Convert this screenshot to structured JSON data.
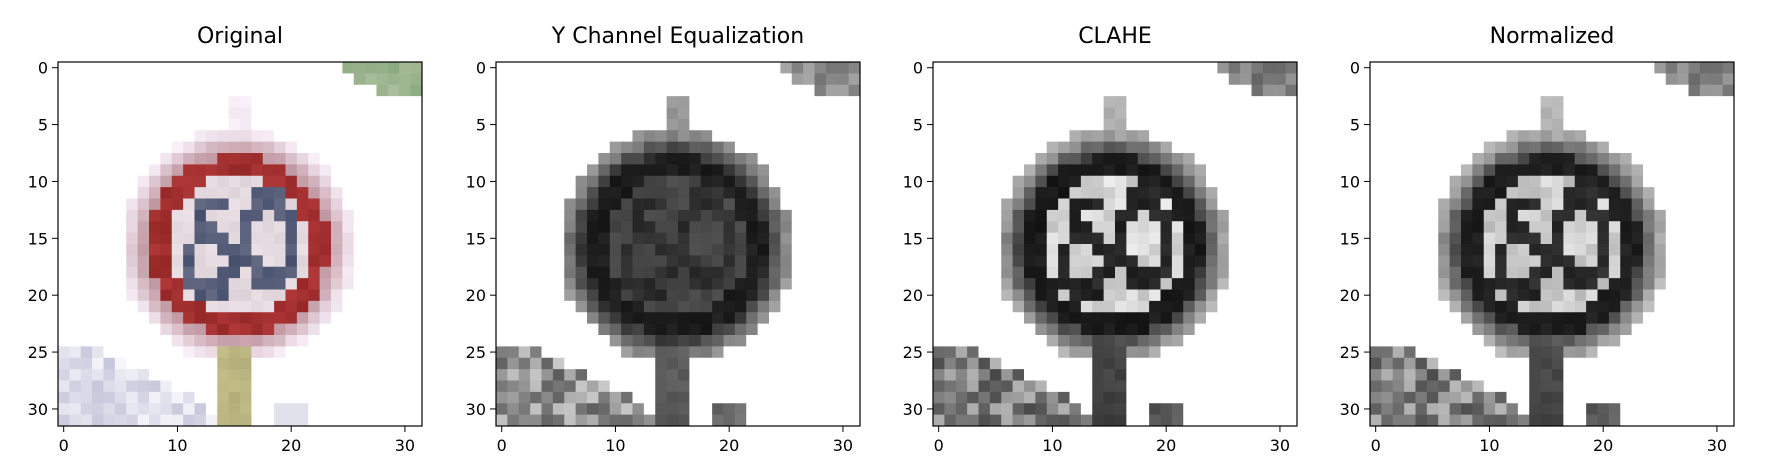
{
  "chart_data": [
    {
      "type": "heatmap",
      "title": "Original",
      "colormap": "rgb",
      "xlim": [
        -0.5,
        31.5
      ],
      "ylim": [
        31.5,
        -0.5
      ],
      "xticks": [
        0,
        10,
        20,
        30
      ],
      "yticks": [
        0,
        5,
        10,
        15,
        20,
        25,
        30
      ],
      "grid": false,
      "legend": "none",
      "content": "32x32 pixel image of a red-bordered circular 60 speed limit sign on white background, with a grey post at the bottom center"
    },
    {
      "type": "heatmap",
      "title": "Y Channel Equalization",
      "colormap": "gray",
      "xlim": [
        -0.5,
        31.5
      ],
      "ylim": [
        31.5,
        -0.5
      ],
      "xticks": [
        0,
        10,
        20,
        30
      ],
      "yticks": [
        0,
        5,
        10,
        15,
        20,
        25,
        30
      ],
      "grid": false,
      "legend": "none",
      "content": "dark grey circular sign with black ring and digits 60"
    },
    {
      "type": "heatmap",
      "title": "CLAHE",
      "colormap": "gray",
      "xlim": [
        -0.5,
        31.5
      ],
      "ylim": [
        31.5,
        -0.5
      ],
      "xticks": [
        0,
        10,
        20,
        30
      ],
      "yticks": [
        0,
        5,
        10,
        15,
        20,
        25,
        30
      ],
      "grid": false,
      "legend": "none",
      "content": "high-contrast grey sign with bright interior and black digits 60"
    },
    {
      "type": "heatmap",
      "title": "Normalized",
      "colormap": "gray",
      "xlim": [
        -0.5,
        31.5
      ],
      "ylim": [
        31.5,
        -0.5
      ],
      "xticks": [
        0,
        10,
        20,
        30
      ],
      "yticks": [
        0,
        5,
        10,
        15,
        20,
        25,
        30
      ],
      "grid": false,
      "legend": "none",
      "content": "normalized grey sign with bright interior and black digits 60"
    }
  ]
}
